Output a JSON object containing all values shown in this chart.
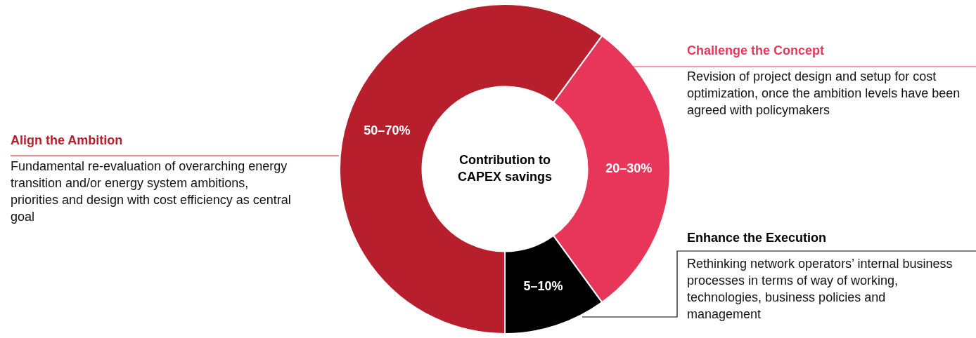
{
  "chart_data": {
    "type": "donut",
    "title": "Contribution to CAPEX savings",
    "categories": [
      "Challenge the Concept",
      "Enhance the Execution",
      "Align the Ambition"
    ],
    "values": [
      30,
      10,
      60
    ],
    "colors": [
      "#e8365a",
      "#000000",
      "#b81f2d"
    ],
    "annotations": [
      {
        "text": "20–30%",
        "x": "Challenge the Concept"
      },
      {
        "text": "5–10%",
        "x": "Enhance the Execution"
      },
      {
        "text": "50–70%",
        "x": "Align the Ambition"
      },
      "Revision of project design and setup for cost optimization, once the ambition levels have been agreed with policymakers",
      "Rethinking network operators’ internal business processes in terms of way of working, technologies, business policies and management",
      "Fundamental re-evaluation of overarching energy transition and/or energy system ambitions, priorities and design with cost efficiency as central goal"
    ]
  }
}
